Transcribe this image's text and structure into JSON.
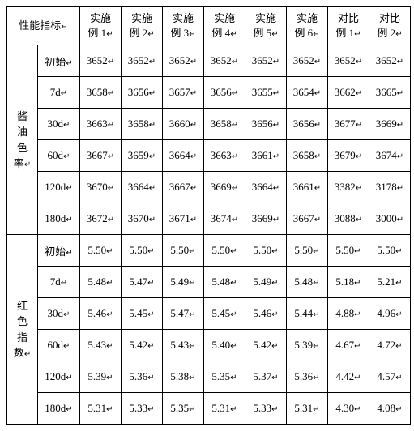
{
  "header_group_label": "性能指标",
  "col_headers": [
    "实施例 1",
    "实施例 2",
    "实施例 3",
    "实施例 4",
    "实施例 5",
    "实施例 6",
    "对比例 1",
    "对比例 2"
  ],
  "groups": [
    {
      "name": "酱油色率",
      "rows": [
        {
          "label": "初始",
          "values": [
            "3652",
            "3652",
            "3652",
            "3652",
            "3652",
            "3652",
            "3652",
            "3652"
          ]
        },
        {
          "label": "7d",
          "values": [
            "3658",
            "3656",
            "3657",
            "3656",
            "3655",
            "3654",
            "3662",
            "3665"
          ]
        },
        {
          "label": "30d",
          "values": [
            "3663",
            "3658",
            "3660",
            "3658",
            "3656",
            "3656",
            "3677",
            "3669"
          ]
        },
        {
          "label": "60d",
          "values": [
            "3667",
            "3659",
            "3664",
            "3663",
            "3661",
            "3658",
            "3679",
            "3674"
          ]
        },
        {
          "label": "120d",
          "values": [
            "3670",
            "3664",
            "3667",
            "3669",
            "3664",
            "3661",
            "3382",
            "3178"
          ]
        },
        {
          "label": "180d",
          "values": [
            "3672",
            "3670",
            "3671",
            "3674",
            "3669",
            "3667",
            "3088",
            "3000"
          ]
        }
      ]
    },
    {
      "name": "红色指数",
      "rows": [
        {
          "label": "初始",
          "values": [
            "5.50",
            "5.50",
            "5.50",
            "5.50",
            "5.50",
            "5.50",
            "5.50",
            "5.50"
          ]
        },
        {
          "label": "7d",
          "values": [
            "5.48",
            "5.47",
            "5.49",
            "5.48",
            "5.49",
            "5.48",
            "5.18",
            "5.21"
          ]
        },
        {
          "label": "30d",
          "values": [
            "5.46",
            "5.45",
            "5.47",
            "5.45",
            "5.46",
            "5.44",
            "4.88",
            "4.96"
          ]
        },
        {
          "label": "60d",
          "values": [
            "5.43",
            "5.42",
            "5.43",
            "5.40",
            "5.42",
            "5.39",
            "4.67",
            "4.72"
          ]
        },
        {
          "label": "120d",
          "values": [
            "5.39",
            "5.36",
            "5.38",
            "5.35",
            "5.37",
            "5.36",
            "4.42",
            "4.57"
          ]
        },
        {
          "label": "180d",
          "values": [
            "5.31",
            "5.33",
            "5.35",
            "5.31",
            "5.33",
            "5.31",
            "4.30",
            "4.08"
          ]
        }
      ]
    }
  ]
}
